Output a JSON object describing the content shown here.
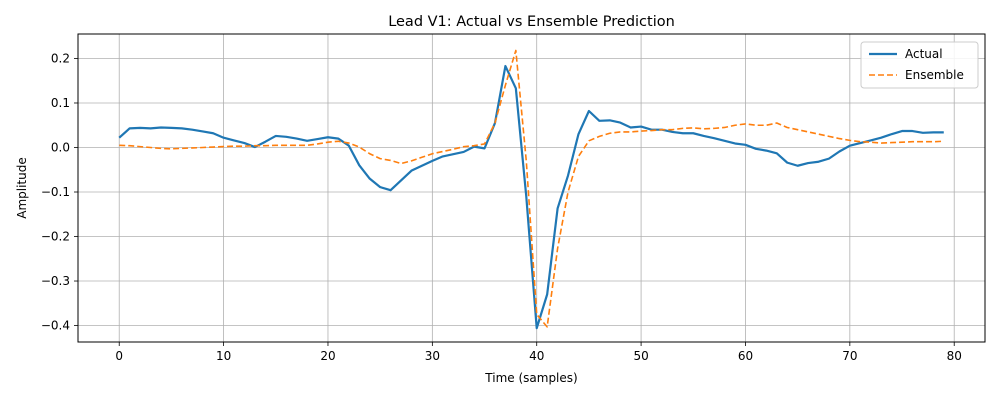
{
  "chart_data": {
    "type": "line",
    "title": "Lead V1: Actual vs Ensemble Prediction",
    "xlabel": "Time (samples)",
    "ylabel": "Amplitude",
    "xlim": [
      -3.95,
      82.95
    ],
    "ylim": [
      -0.437,
      0.255
    ],
    "xticks": [
      0,
      10,
      20,
      30,
      40,
      50,
      60,
      70,
      80
    ],
    "yticks": [
      -0.4,
      -0.3,
      -0.2,
      -0.1,
      0.0,
      0.1,
      0.2
    ],
    "ytick_labels": [
      "−0.4",
      "−0.3",
      "−0.2",
      "−0.1",
      "0.0",
      "0.1",
      "0.2"
    ],
    "grid": true,
    "legend_position": "upper right",
    "series": [
      {
        "name": "Actual",
        "color": "#1f77b4",
        "style": "solid",
        "x": [
          0,
          1,
          2,
          3,
          4,
          5,
          6,
          7,
          8,
          9,
          10,
          11,
          12,
          13,
          14,
          15,
          16,
          17,
          18,
          19,
          20,
          21,
          22,
          23,
          24,
          25,
          26,
          27,
          28,
          29,
          30,
          31,
          32,
          33,
          34,
          35,
          36,
          37,
          38,
          39,
          40,
          41,
          42,
          43,
          44,
          45,
          46,
          47,
          48,
          49,
          50,
          51,
          52,
          53,
          54,
          55,
          56,
          57,
          58,
          59,
          60,
          61,
          62,
          63,
          64,
          65,
          66,
          67,
          68,
          69,
          70,
          71,
          72,
          73,
          74,
          75,
          76,
          77,
          78,
          79
        ],
        "values": [
          0.022,
          0.043,
          0.044,
          0.043,
          0.045,
          0.044,
          0.043,
          0.04,
          0.036,
          0.032,
          0.022,
          0.016,
          0.01,
          0.001,
          0.013,
          0.026,
          0.024,
          0.02,
          0.015,
          0.019,
          0.023,
          0.02,
          0.004,
          -0.04,
          -0.07,
          -0.089,
          -0.096,
          -0.074,
          -0.052,
          -0.041,
          -0.03,
          -0.02,
          -0.015,
          -0.01,
          0.002,
          -0.002,
          0.055,
          0.183,
          0.133,
          -0.11,
          -0.406,
          -0.33,
          -0.137,
          -0.063,
          0.03,
          0.082,
          0.06,
          0.061,
          0.056,
          0.045,
          0.047,
          0.04,
          0.04,
          0.035,
          0.032,
          0.032,
          0.026,
          0.021,
          0.015,
          0.009,
          0.006,
          -0.003,
          -0.007,
          -0.013,
          -0.034,
          -0.041,
          -0.035,
          -0.032,
          -0.025,
          -0.009,
          0.004,
          0.01,
          0.016,
          0.022,
          0.03,
          0.037,
          0.037,
          0.033,
          0.034,
          0.034
        ]
      },
      {
        "name": "Ensemble",
        "color": "#ff7f0e",
        "style": "dashed",
        "x": [
          0,
          1,
          2,
          3,
          4,
          5,
          6,
          7,
          8,
          9,
          10,
          11,
          12,
          13,
          14,
          15,
          16,
          17,
          18,
          19,
          20,
          21,
          22,
          23,
          24,
          25,
          26,
          27,
          28,
          29,
          30,
          31,
          32,
          33,
          34,
          35,
          36,
          37,
          38,
          39,
          40,
          41,
          42,
          43,
          44,
          45,
          46,
          47,
          48,
          49,
          50,
          51,
          52,
          53,
          54,
          55,
          56,
          57,
          58,
          59,
          60,
          61,
          62,
          63,
          64,
          65,
          66,
          67,
          68,
          69,
          70,
          71,
          72,
          73,
          74,
          75,
          76,
          77,
          78,
          79
        ],
        "values": [
          0.005,
          0.004,
          0.002,
          0.0,
          -0.002,
          -0.003,
          -0.002,
          -0.001,
          0.0,
          0.001,
          0.002,
          0.003,
          0.003,
          0.004,
          0.004,
          0.005,
          0.005,
          0.005,
          0.005,
          0.008,
          0.012,
          0.014,
          0.01,
          0.001,
          -0.014,
          -0.025,
          -0.029,
          -0.036,
          -0.03,
          -0.022,
          -0.014,
          -0.009,
          -0.004,
          0.002,
          0.004,
          0.008,
          0.055,
          0.14,
          0.218,
          -0.03,
          -0.375,
          -0.403,
          -0.227,
          -0.1,
          -0.02,
          0.015,
          0.025,
          0.032,
          0.035,
          0.035,
          0.037,
          0.038,
          0.04,
          0.04,
          0.043,
          0.044,
          0.042,
          0.043,
          0.045,
          0.05,
          0.053,
          0.05,
          0.05,
          0.055,
          0.045,
          0.04,
          0.035,
          0.03,
          0.025,
          0.02,
          0.016,
          0.013,
          0.012,
          0.01,
          0.011,
          0.012,
          0.013,
          0.013,
          0.013,
          0.014
        ]
      }
    ]
  }
}
